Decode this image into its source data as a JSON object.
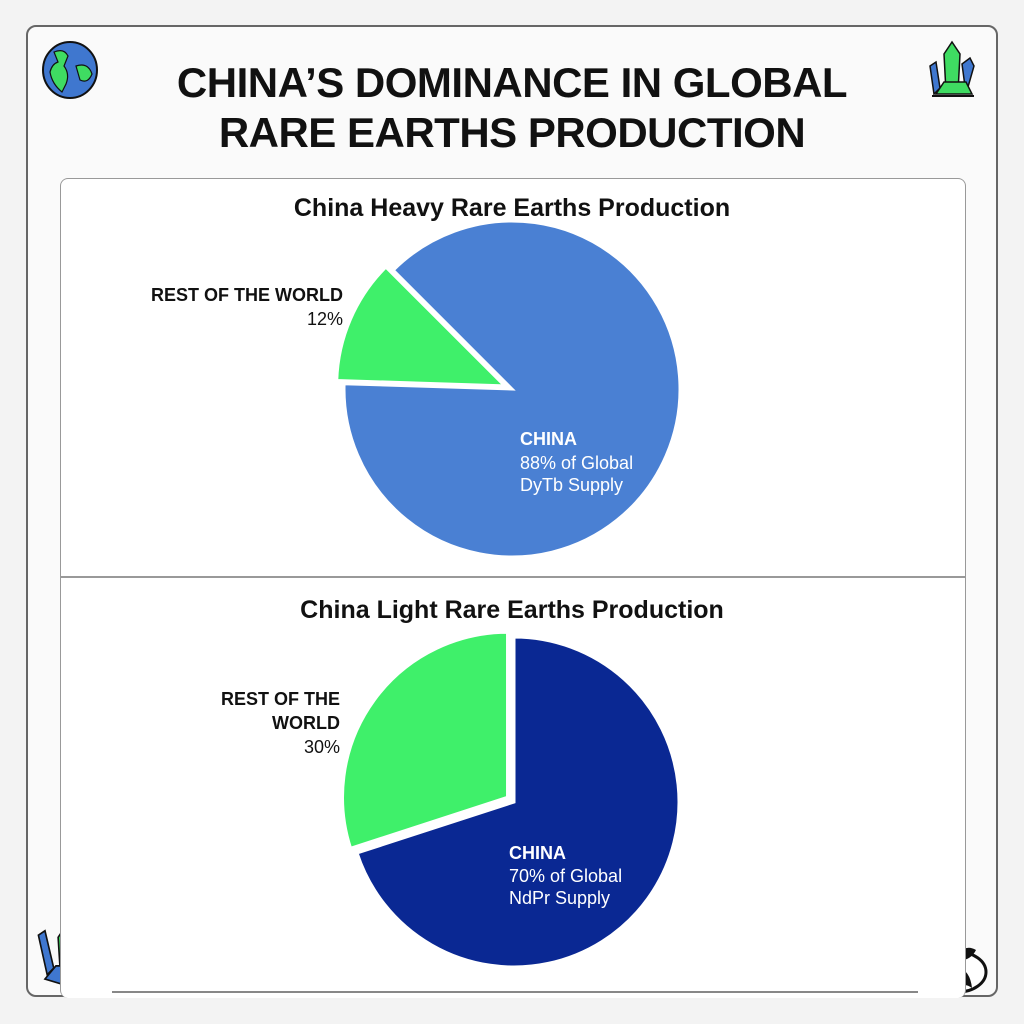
{
  "title_line1": "CHINA’S DOMINANCE IN GLOBAL",
  "title_line2": "RARE EARTHS PRODUCTION",
  "icons": [
    "globe-icon",
    "crystal-icon",
    "crystal-icon",
    "logo-icon"
  ],
  "chart_data": [
    {
      "type": "pie",
      "title": "China Heavy Rare Earths Production",
      "slices": [
        {
          "label": "CHINA",
          "value": 88,
          "detail_line1": "88% of Global",
          "detail_line2": "DyTb Supply",
          "color": "#4a80d3"
        },
        {
          "label": "REST OF THE WORLD",
          "value": 12,
          "value_label": "12%",
          "color": "#3ff06a",
          "exploded": true
        }
      ]
    },
    {
      "type": "pie",
      "title": "China Light Rare Earths Production",
      "slices": [
        {
          "label": "CHINA",
          "value": 70,
          "detail_line1": "70% of Global",
          "detail_line2": "NdPr Supply",
          "color": "#0a2893"
        },
        {
          "label_line1": "REST OF THE",
          "label_line2": "WORLD",
          "value": 30,
          "value_label": "30%",
          "color": "#3ff06a",
          "exploded": true
        }
      ]
    }
  ]
}
